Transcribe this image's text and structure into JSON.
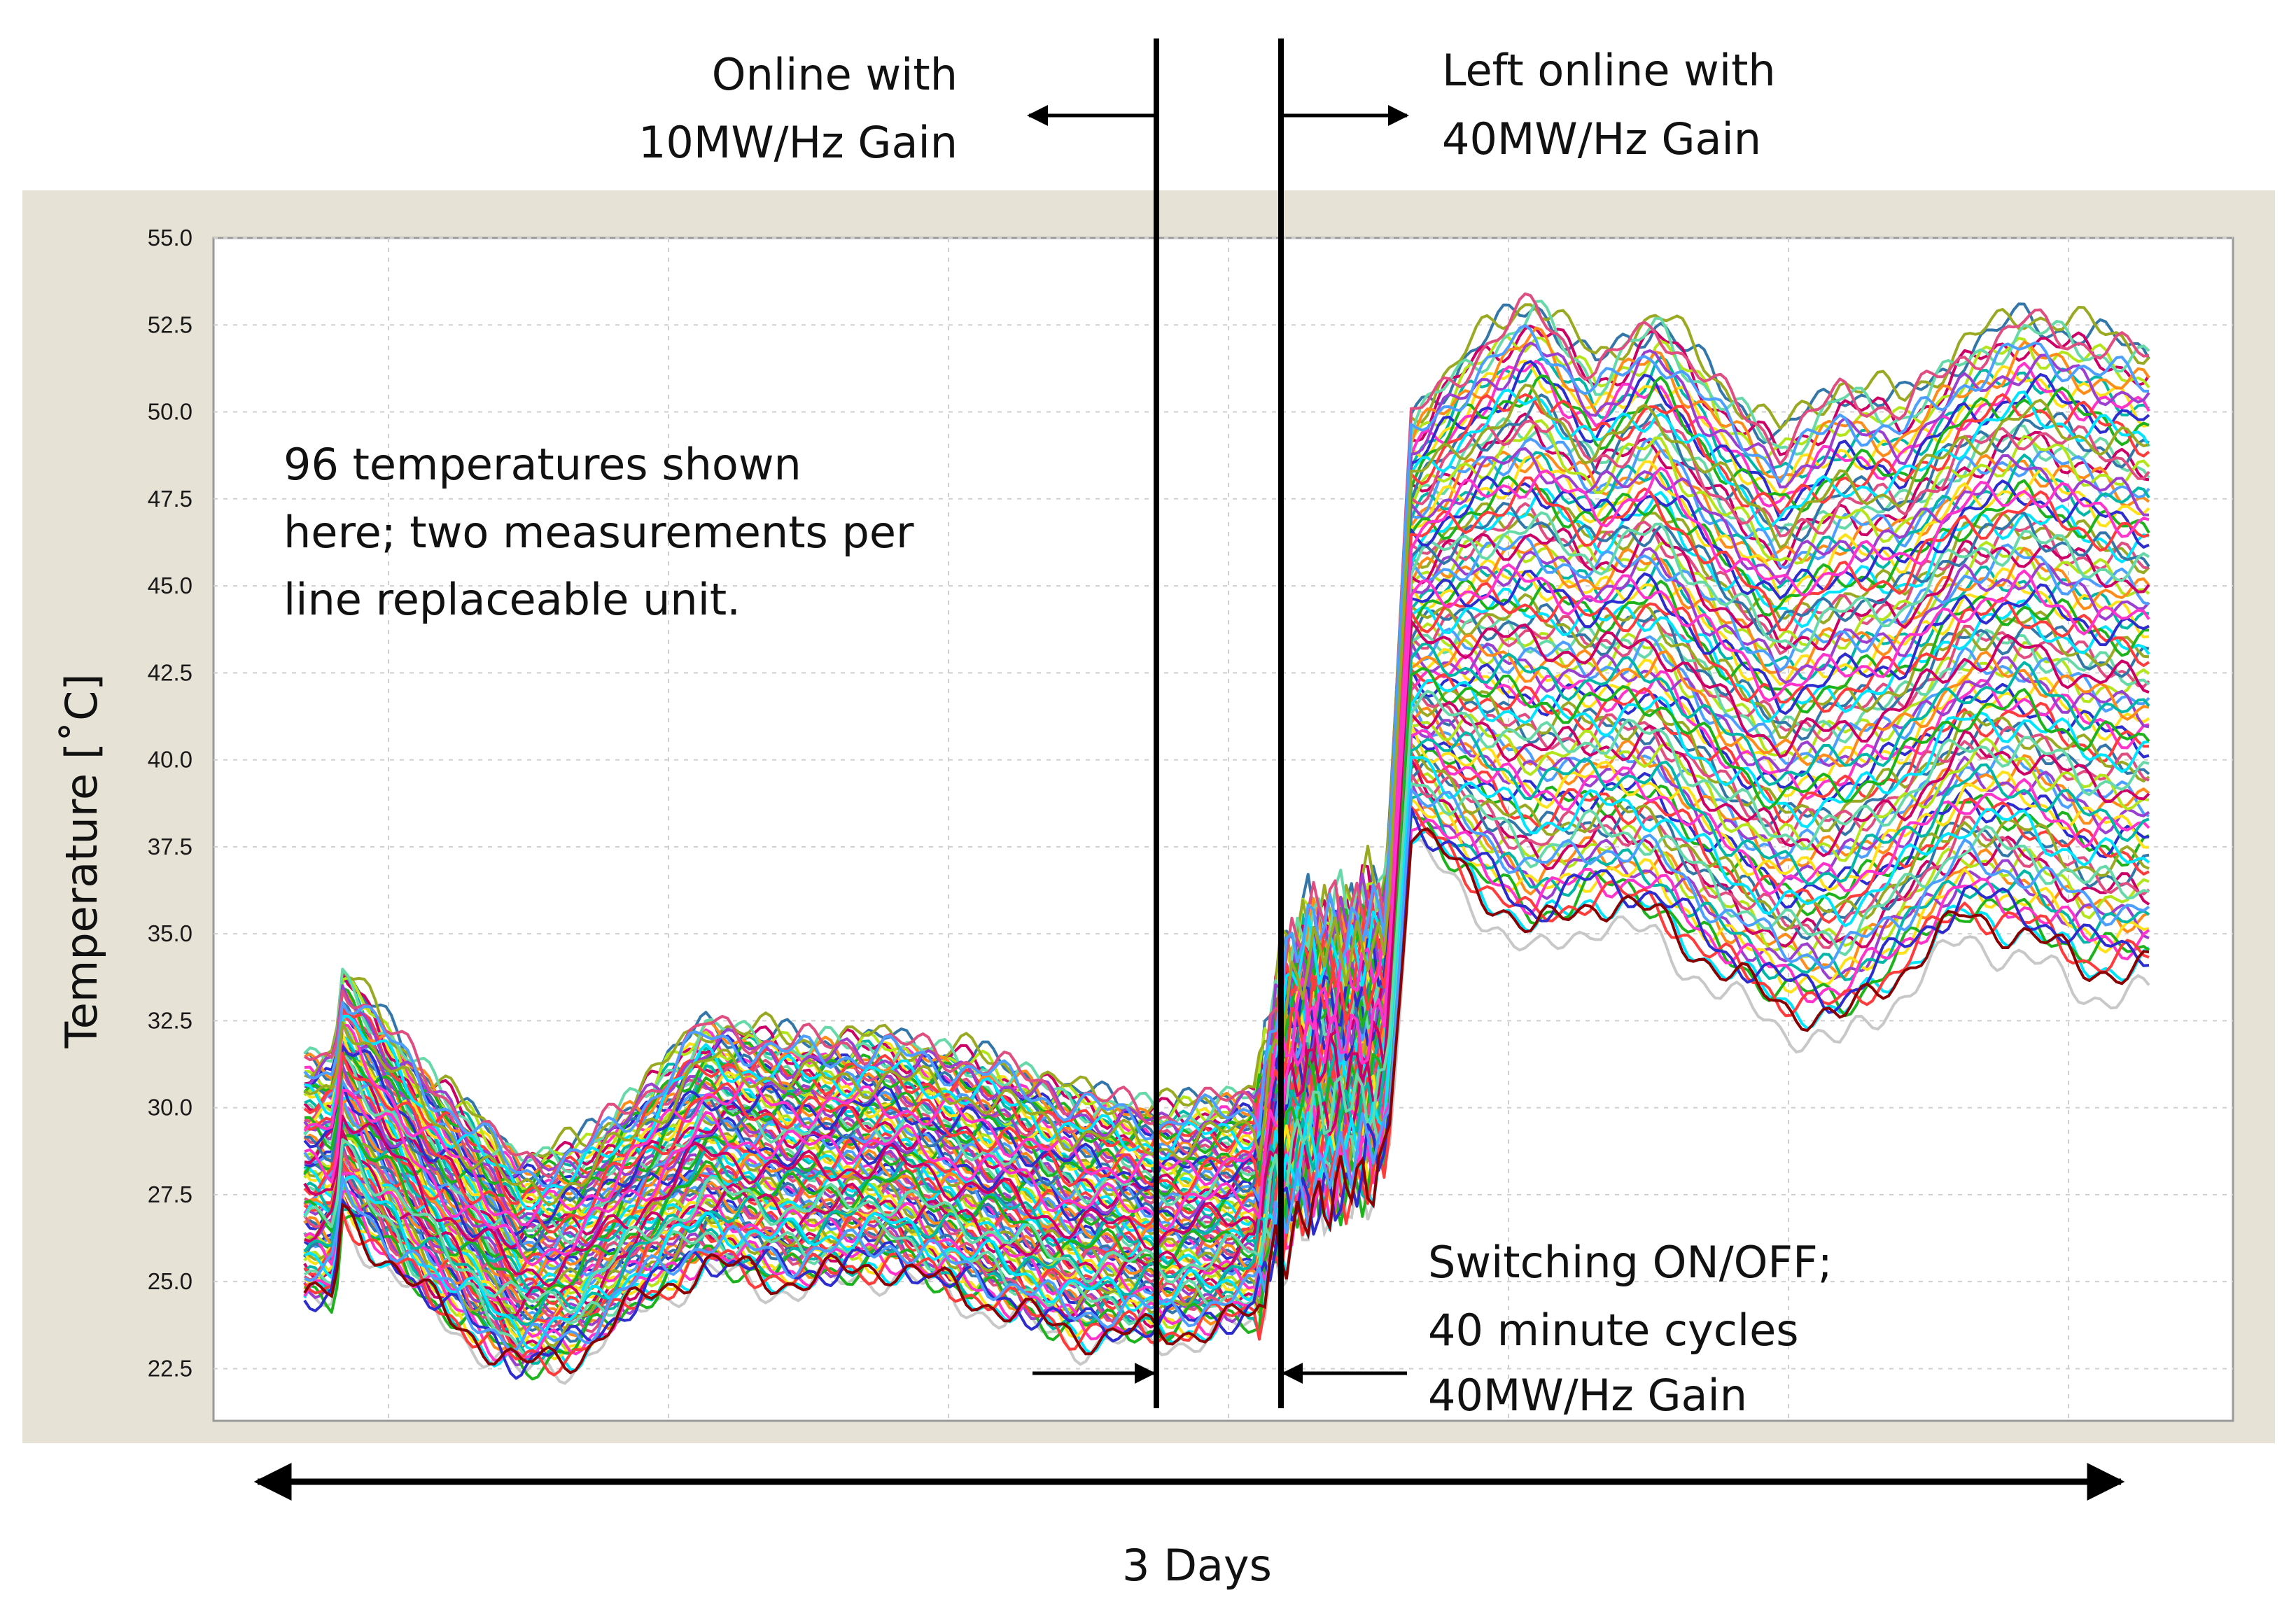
{
  "colors": {
    "panel": "#e6e2d6",
    "plot_bg": "#ffffff",
    "grid": "#cfcfcf",
    "annotation": "#000000",
    "palette": [
      "#00e5ff",
      "#ff3b3b",
      "#1db31d",
      "#2c2ccf",
      "#ff33cc",
      "#ffe11a",
      "#00b7a8",
      "#9b3fd1",
      "#ff8c1a",
      "#4d9fff",
      "#b3e61a",
      "#cc0066",
      "#66d9a8",
      "#e04d80",
      "#3377aa",
      "#99aa22"
    ],
    "lowest_trace": "#8b0000",
    "floor_trace": "#c8c8c8"
  },
  "annotations": {
    "online_10": {
      "line1": "Online with",
      "line2": "10MW/Hz Gain"
    },
    "online_40": {
      "line1": "Left online with",
      "line2": "40MW/Hz Gain"
    },
    "temps_note": {
      "line1": "96 temperatures shown",
      "line2": "here; two measurements per",
      "line3": "line replaceable unit."
    },
    "switching": {
      "line1": "Switching ON/OFF;",
      "line2": "40 minute cycles",
      "line3": "40MW/Hz Gain"
    },
    "duration": "3 Days"
  },
  "chart_data": {
    "type": "line",
    "title": "",
    "xlabel": "3 Days",
    "ylabel": "Temperature  [˚C]",
    "ylim": [
      21.0,
      55.0
    ],
    "yticks": [
      "55.0",
      "52.5",
      "50.0",
      "47.5",
      "45.0",
      "42.5",
      "40.0",
      "37.5",
      "35.0",
      "32.5",
      "30.0",
      "27.5",
      "25.0",
      "22.5"
    ],
    "x_range_days": [
      0,
      3
    ],
    "n_series": 96,
    "grid": true,
    "legend": "none",
    "phases": [
      {
        "label": "Online with 10MW/Hz Gain",
        "x": [
          0.0,
          1.55
        ]
      },
      {
        "label": "Switching ON/OFF; 40 minute cycles 40MW/Hz Gain",
        "x": [
          1.55,
          1.76
        ]
      },
      {
        "label": "Left online with 40MW/Hz Gain",
        "x": [
          1.76,
          3.0
        ]
      }
    ],
    "envelope": {
      "x": [
        0.0,
        0.05,
        0.06,
        0.2,
        0.35,
        0.45,
        0.55,
        0.65,
        0.8,
        0.95,
        1.1,
        1.25,
        1.4,
        1.55,
        1.58,
        1.62,
        1.7,
        1.76,
        1.8,
        1.9,
        2.0,
        2.1,
        2.2,
        2.3,
        2.4,
        2.5,
        2.6,
        2.7,
        2.8,
        2.9,
        3.0
      ],
      "upper": [
        31.5,
        31.5,
        34.0,
        31.0,
        28.5,
        29.0,
        30.5,
        32.5,
        32.0,
        32.0,
        31.5,
        30.5,
        30.0,
        30.5,
        33.5,
        35.5,
        36.0,
        36.5,
        50.0,
        52.0,
        53.5,
        51.5,
        53.0,
        51.0,
        49.5,
        51.0,
        50.5,
        52.0,
        53.0,
        52.5,
        52.0
      ],
      "lower": [
        24.5,
        24.5,
        27.0,
        24.5,
        22.5,
        23.0,
        24.5,
        25.5,
        25.0,
        25.5,
        24.5,
        23.5,
        23.5,
        24.0,
        26.0,
        27.0,
        27.5,
        28.5,
        38.0,
        36.5,
        35.0,
        36.0,
        35.5,
        34.0,
        33.0,
        32.5,
        34.0,
        35.5,
        35.0,
        34.0,
        34.0
      ]
    }
  }
}
